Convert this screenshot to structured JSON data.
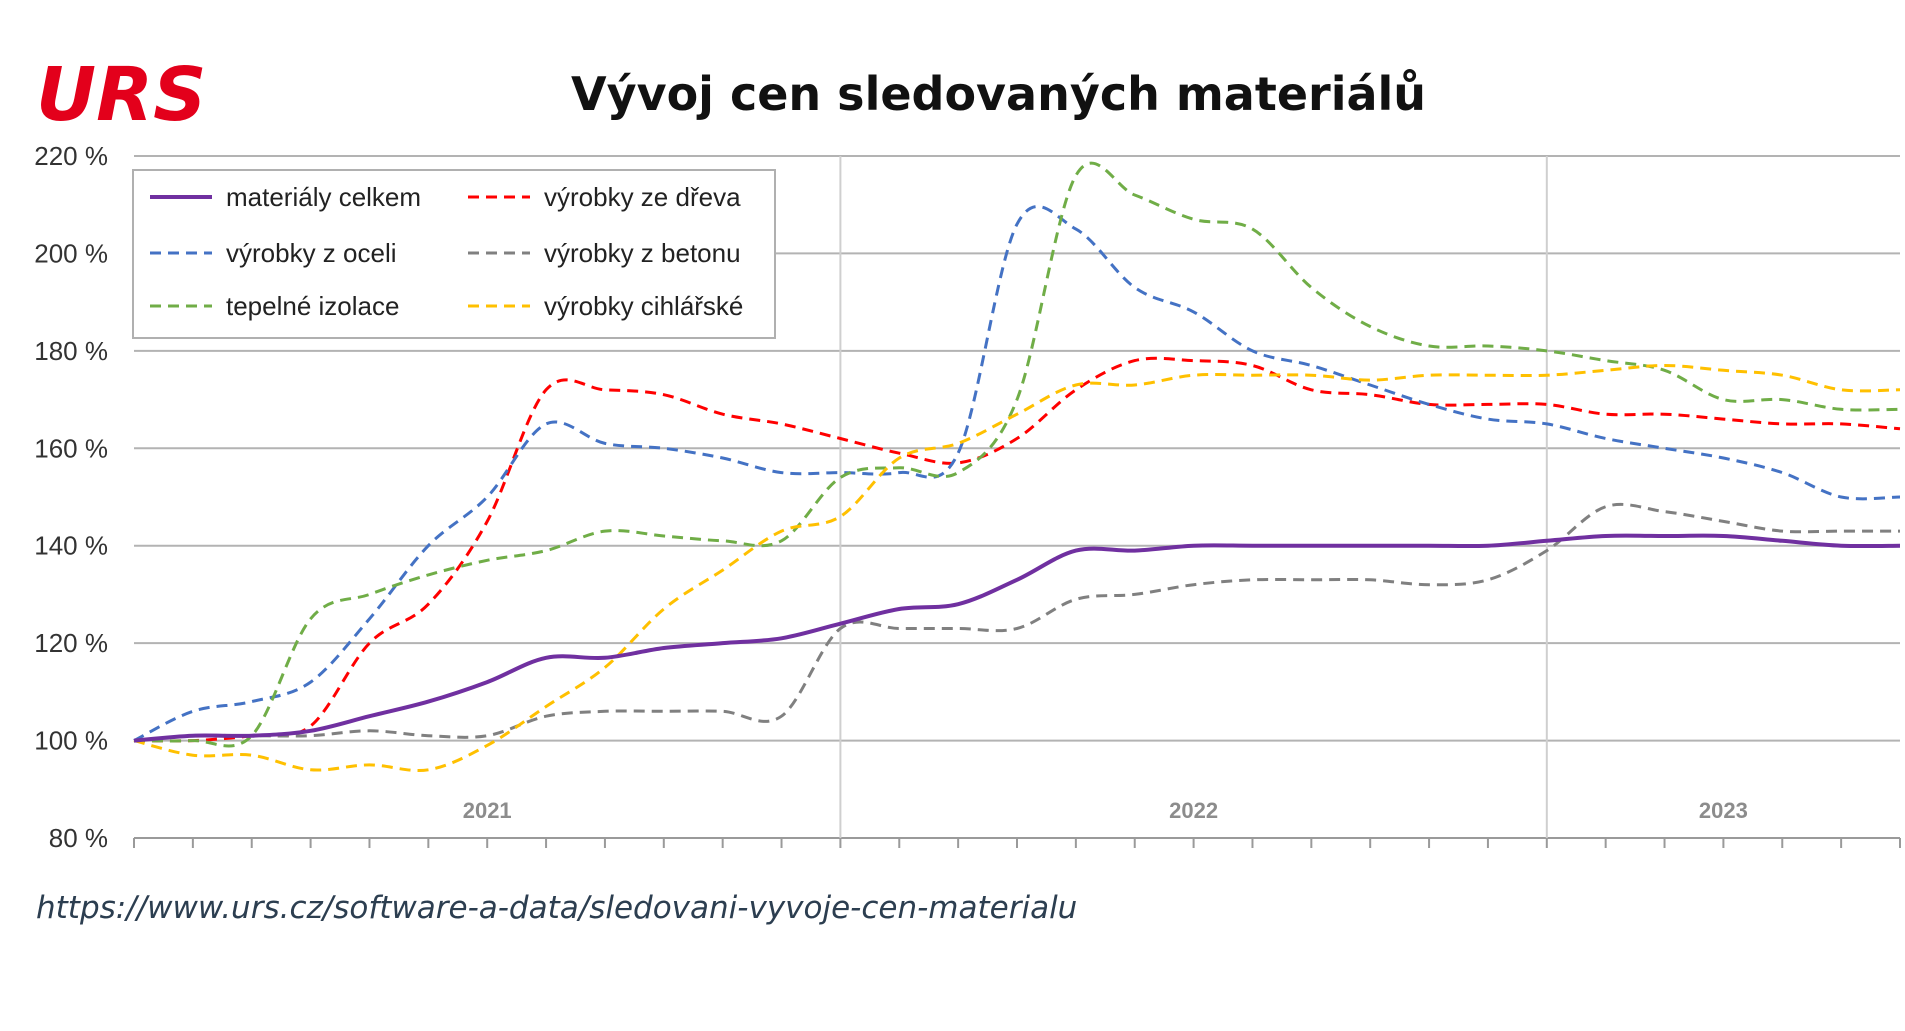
{
  "logo": {
    "text": "URS",
    "color": "#e3001b"
  },
  "source_url": "https://www.urs.cz/software-a-data/sledovani-vyvoje-cen-materialu",
  "chart_data": {
    "type": "line",
    "title": "Vývoj cen sledovaných materiálů",
    "xlabel": "",
    "ylabel": "",
    "ylim": [
      80,
      220
    ],
    "y_ticks": [
      "80 %",
      "100 %",
      "120 %",
      "140 %",
      "160 %",
      "180 %",
      "200 %",
      "220 %"
    ],
    "y_tick_values": [
      80,
      100,
      120,
      140,
      160,
      180,
      200,
      220
    ],
    "x_period_labels": [
      "2021",
      "2022",
      "2023"
    ],
    "grid": true,
    "legend_position": "top-left",
    "x": [
      "2020-12",
      "2021-01",
      "2021-02",
      "2021-03",
      "2021-04",
      "2021-05",
      "2021-06",
      "2021-07",
      "2021-08",
      "2021-09",
      "2021-10",
      "2021-11",
      "2021-12",
      "2022-01",
      "2022-02",
      "2022-03",
      "2022-04",
      "2022-05",
      "2022-06",
      "2022-07",
      "2022-08",
      "2022-09",
      "2022-10",
      "2022-11",
      "2022-12",
      "2023-01",
      "2023-02",
      "2023-03",
      "2023-04",
      "2023-05",
      "2023-06"
    ],
    "series": [
      {
        "name": "materiály celkem",
        "color": "#7030a0",
        "dashed": false,
        "values": [
          100,
          101,
          101,
          102,
          105,
          108,
          112,
          117,
          117,
          119,
          120,
          121,
          124,
          127,
          128,
          133,
          139,
          139,
          140,
          140,
          140,
          140,
          140,
          140,
          141,
          142,
          142,
          142,
          141,
          140,
          140
        ]
      },
      {
        "name": "výrobky ze dřeva",
        "color": "#ff0000",
        "dashed": true,
        "values": [
          100,
          100,
          101,
          103,
          120,
          128,
          145,
          172,
          172,
          171,
          167,
          165,
          162,
          159,
          157,
          162,
          172,
          178,
          178,
          177,
          172,
          171,
          169,
          169,
          169,
          167,
          167,
          166,
          165,
          165,
          164
        ]
      },
      {
        "name": "výrobky z oceli",
        "color": "#4472c4",
        "dashed": true,
        "values": [
          100,
          106,
          108,
          112,
          125,
          140,
          150,
          165,
          161,
          160,
          158,
          155,
          155,
          155,
          159,
          206,
          205,
          193,
          188,
          180,
          177,
          173,
          169,
          166,
          165,
          162,
          160,
          158,
          155,
          150,
          150
        ]
      },
      {
        "name": "výrobky z betonu",
        "color": "#808080",
        "dashed": true,
        "values": [
          100,
          101,
          101,
          101,
          102,
          101,
          101,
          105,
          106,
          106,
          106,
          105,
          123,
          123,
          123,
          123,
          129,
          130,
          132,
          133,
          133,
          133,
          132,
          133,
          139,
          148,
          147,
          145,
          143,
          143,
          143
        ]
      },
      {
        "name": "tepelné izolace",
        "color": "#70ad47",
        "dashed": true,
        "values": [
          100,
          100,
          101,
          125,
          130,
          134,
          137,
          139,
          143,
          142,
          141,
          141,
          154,
          156,
          155,
          170,
          216,
          212,
          207,
          205,
          193,
          185,
          181,
          181,
          180,
          178,
          176,
          170,
          170,
          168,
          168
        ]
      },
      {
        "name": "výrobky cihlářské",
        "color": "#ffc000",
        "dashed": true,
        "values": [
          100,
          97,
          97,
          94,
          95,
          94,
          99,
          107,
          115,
          127,
          135,
          143,
          146,
          158,
          161,
          167,
          173,
          173,
          175,
          175,
          175,
          174,
          175,
          175,
          175,
          176,
          177,
          176,
          175,
          172,
          172
        ]
      }
    ]
  }
}
